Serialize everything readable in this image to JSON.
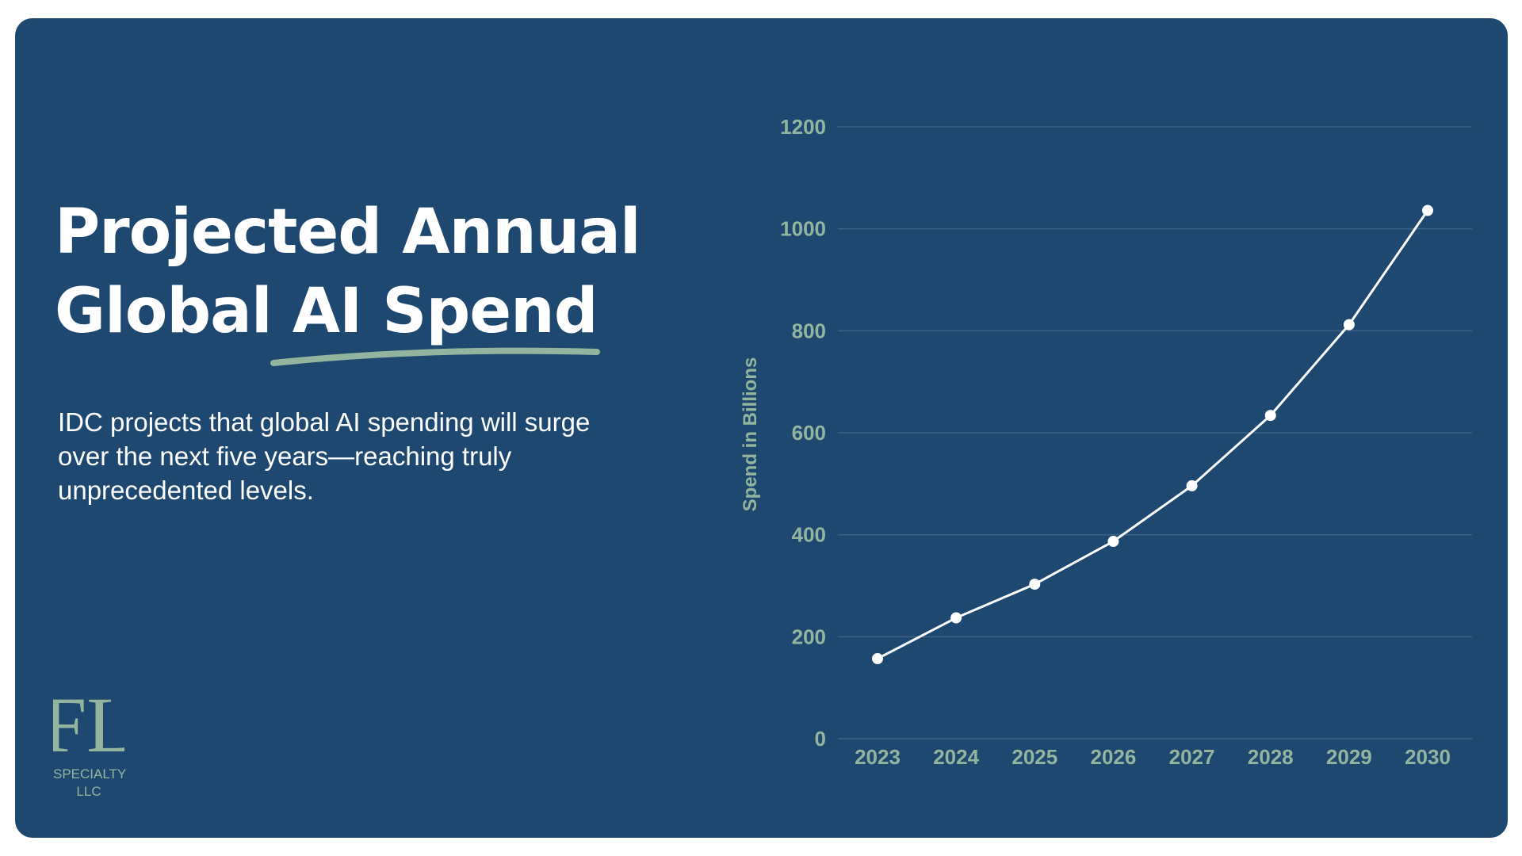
{
  "title": {
    "line1": "Projected Annual",
    "line2_prefix": "Global ",
    "line2_highlight": "AI Spend"
  },
  "description": "IDC projects that global AI spending will surge over the next five years—reaching truly unprecedented levels.",
  "logo": {
    "monogram": "FL",
    "line1": "SPECIALTY",
    "line2": "LLC"
  },
  "colors": {
    "background": "#1f4870",
    "accent": "#93b59f",
    "line": "#ffffff",
    "grid": "#3d6283"
  },
  "chart_data": {
    "type": "line",
    "title": "",
    "xlabel": "",
    "ylabel": "Spend in Billions",
    "x": [
      "2023",
      "2024",
      "2025",
      "2026",
      "2027",
      "2028",
      "2029",
      "2030"
    ],
    "series": [
      {
        "name": "Projected Annual Global AI Spend",
        "values": [
          157,
          237,
          303,
          387,
          496,
          634,
          812,
          1036
        ]
      }
    ],
    "ylim": [
      0,
      1200
    ],
    "yticks": [
      0,
      200,
      400,
      600,
      800,
      1000,
      1200
    ],
    "grid": true
  }
}
